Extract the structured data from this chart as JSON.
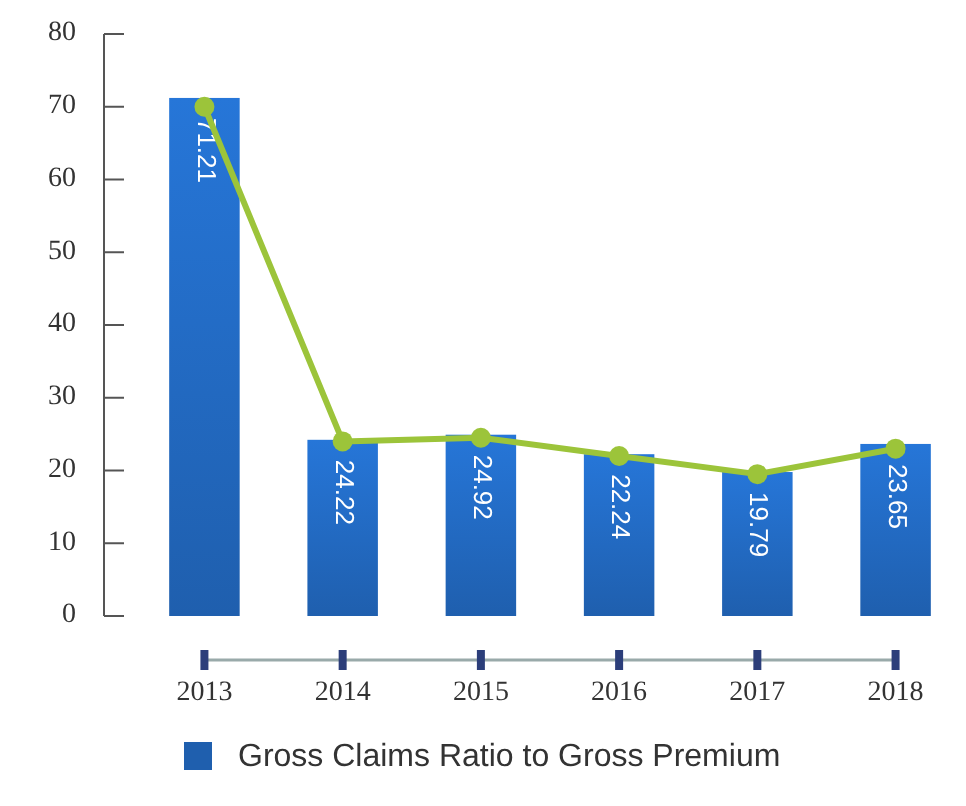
{
  "chart_data": {
    "type": "bar",
    "categories": [
      "2013",
      "2014",
      "2015",
      "2016",
      "2017",
      "2018"
    ],
    "series": [
      {
        "name": "Gross Claims Ratio to Gross Premium",
        "color": "#1f5fae",
        "values": [
          71.21,
          24.22,
          24.92,
          22.24,
          19.79,
          23.65
        ],
        "value_labels": [
          "71.21",
          "24.22",
          "24.92",
          "22.24",
          "19.79",
          "23.65"
        ]
      },
      {
        "type": "line",
        "color": "#9cc43a",
        "values": [
          70,
          24,
          24.5,
          22,
          19.5,
          23
        ],
        "marker": "circle"
      }
    ],
    "ylim": [
      0,
      80
    ],
    "yticks": [
      0,
      10,
      20,
      30,
      40,
      50,
      60,
      70,
      80
    ],
    "grid": false,
    "legend": "bottom"
  }
}
